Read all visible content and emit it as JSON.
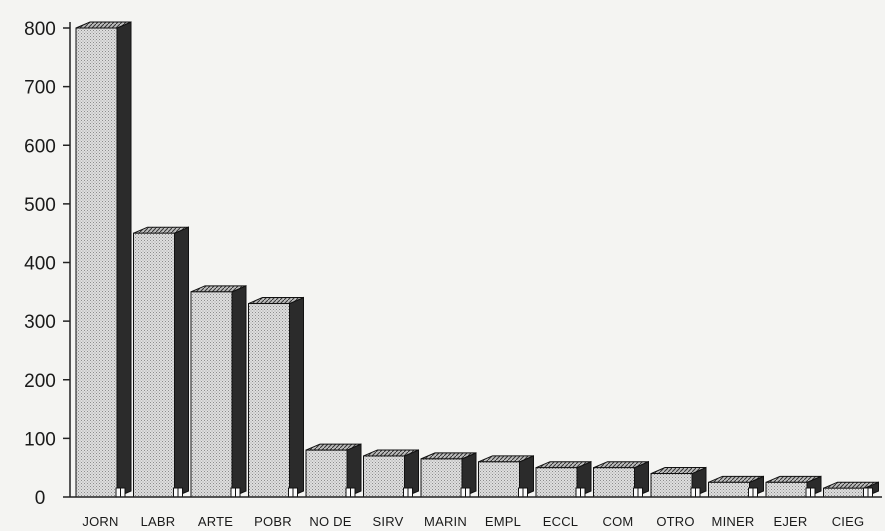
{
  "chart_data": {
    "type": "bar",
    "style": "3d",
    "categories": [
      "JORN",
      "LABR",
      "ARTE",
      "POBR",
      "NO DE",
      "SIRV",
      "MARIN",
      "EMPL",
      "ECCL",
      "COM",
      "OTRO",
      "MINER",
      "EJER",
      "CIEG"
    ],
    "values": [
      800,
      450,
      350,
      330,
      80,
      70,
      65,
      60,
      50,
      50,
      40,
      25,
      25,
      15
    ],
    "yticks": [
      "0",
      "100",
      "200",
      "300",
      "400",
      "500",
      "600",
      "700",
      "800"
    ],
    "ylim": [
      0,
      800
    ],
    "grid": false,
    "legend": "none",
    "colors": {
      "front": "#d6d6d6",
      "side": "#2b2b2b",
      "top": "#9a9a9a",
      "axis": "#222222"
    }
  }
}
